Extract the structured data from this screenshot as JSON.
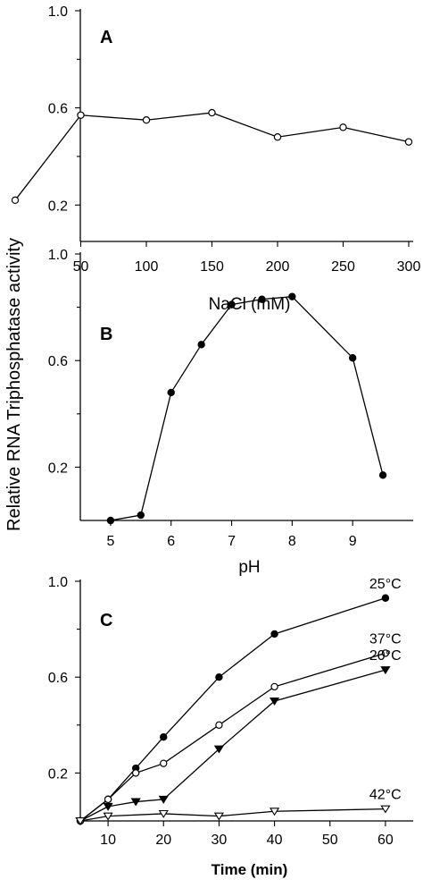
{
  "figure": {
    "ylabel": "Relative RNA Triphosphatase activity"
  },
  "chart_data": [
    {
      "type": "line",
      "panel_label": "A",
      "xlabel": "NaCl (mM)",
      "ylabel": "Relative RNA Triphosphatase activity",
      "xlim": [
        0,
        300
      ],
      "ylim": [
        0,
        1.0
      ],
      "x_ticks": [
        50,
        100,
        150,
        200,
        250,
        300
      ],
      "y_ticks": [
        0.2,
        0.6,
        1.0
      ],
      "grid": false,
      "series": [
        {
          "marker": "open-circle",
          "x": [
            0,
            50,
            100,
            150,
            200,
            250,
            300
          ],
          "values": [
            0.22,
            0.57,
            0.55,
            0.58,
            0.48,
            0.52,
            0.46
          ]
        }
      ]
    },
    {
      "type": "line",
      "panel_label": "B",
      "xlabel": "pH",
      "ylabel": "Relative RNA Triphosphatase activity",
      "xlim": [
        4.5,
        10
      ],
      "ylim": [
        0,
        1.0
      ],
      "x_ticks": [
        5,
        6,
        7,
        8,
        9
      ],
      "y_ticks": [
        0.2,
        0.6,
        1.0
      ],
      "grid": false,
      "series": [
        {
          "marker": "filled-circle",
          "x": [
            5,
            5.5,
            6,
            6.5,
            7,
            7.5,
            8,
            9,
            9.5
          ],
          "values": [
            0.0,
            0.02,
            0.48,
            0.66,
            0.81,
            0.83,
            0.84,
            0.61,
            0.17
          ]
        }
      ]
    },
    {
      "type": "line",
      "panel_label": "C",
      "xlabel": "Time (min)",
      "ylabel": "Relative RNA Triphosphatase activity",
      "xlim": [
        5,
        65
      ],
      "ylim": [
        0,
        1.0
      ],
      "x_ticks": [
        10,
        20,
        30,
        40,
        50,
        60
      ],
      "y_ticks": [
        0.2,
        0.6,
        1.0
      ],
      "grid": false,
      "series": [
        {
          "name": "25°C",
          "marker": "filled-circle",
          "x": [
            5,
            10,
            15,
            20,
            30,
            40,
            60
          ],
          "values": [
            0.0,
            0.09,
            0.22,
            0.35,
            0.6,
            0.78,
            0.93
          ]
        },
        {
          "name": "37°C",
          "marker": "open-circle",
          "x": [
            5,
            10,
            15,
            20,
            30,
            40,
            60
          ],
          "values": [
            0.0,
            0.09,
            0.2,
            0.24,
            0.4,
            0.56,
            0.7
          ]
        },
        {
          "name": "20°C",
          "marker": "filled-triangle-down",
          "x": [
            5,
            10,
            15,
            20,
            30,
            40,
            60
          ],
          "values": [
            0.0,
            0.06,
            0.08,
            0.09,
            0.3,
            0.5,
            0.63
          ]
        },
        {
          "name": "42°C",
          "marker": "open-triangle-down",
          "x": [
            5,
            10,
            20,
            30,
            40,
            60
          ],
          "values": [
            0.0,
            0.02,
            0.03,
            0.02,
            0.04,
            0.05
          ]
        }
      ]
    }
  ]
}
